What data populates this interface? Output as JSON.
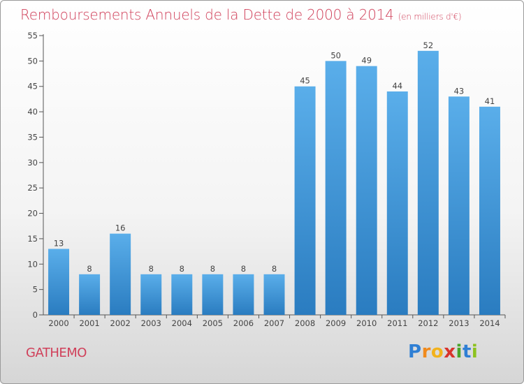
{
  "title": "Remboursements Annuels de la Dette de 2000 à 2014",
  "unit": "(en milliers d'€)",
  "commune": "GATHEMO",
  "logo": {
    "letters": [
      {
        "char": "P",
        "color": "#2f7fd4"
      },
      {
        "char": "r",
        "color": "#f08a1c"
      },
      {
        "char": "o",
        "color": "#f2b21c"
      },
      {
        "char": "x",
        "color": "#d8342c"
      },
      {
        "char": "i",
        "color": "#4aa52a"
      },
      {
        "char": "t",
        "color": "#2f7fd4"
      },
      {
        "char": "i",
        "color": "#8dc21f"
      }
    ]
  },
  "chart_data": {
    "type": "bar",
    "categories": [
      "2000",
      "2001",
      "2002",
      "2003",
      "2004",
      "2005",
      "2006",
      "2007",
      "2008",
      "2009",
      "2010",
      "2011",
      "2012",
      "2013",
      "2014"
    ],
    "values": [
      13,
      8,
      16,
      8,
      8,
      8,
      8,
      8,
      45,
      50,
      49,
      44,
      52,
      43,
      41
    ],
    "ylim": [
      0,
      55
    ],
    "yticks": [
      0,
      5,
      10,
      15,
      20,
      25,
      30,
      35,
      40,
      45,
      50,
      55
    ],
    "grid": false,
    "data_labels": true,
    "bar_color_top": "#5aaeea",
    "bar_color_bottom": "#2a7cc0"
  }
}
